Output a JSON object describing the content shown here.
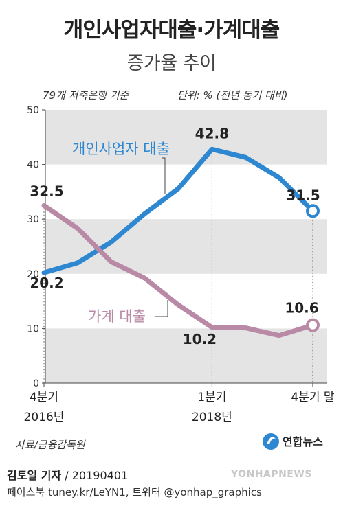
{
  "header": {
    "title": "개인사업자대출·가계대출",
    "subtitle": "증가율 추이",
    "basis_note": "79개 저축은행 기준",
    "unit_note": "단위: % (전년 동기 대비)"
  },
  "chart_data": {
    "type": "line",
    "ylim": [
      0,
      50
    ],
    "yticks": [
      0,
      10,
      20,
      30,
      40,
      50
    ],
    "grid": "alternating horizontal bands",
    "x": [
      "2016Q4",
      "2017Q1",
      "2017Q2",
      "2017Q3",
      "2017Q4",
      "2018Q1",
      "2018Q2",
      "2018Q3",
      "2018Q4"
    ],
    "xtick_labels": [
      {
        "index": 0,
        "line1": "4분기",
        "line2": "2016년"
      },
      {
        "index": 5,
        "line1": "1분기",
        "line2": "2018년"
      },
      {
        "index": 8,
        "line1": "4분기 말",
        "line2": ""
      }
    ],
    "series": [
      {
        "name": "개인사업자 대출",
        "color": "#2e88d1",
        "values": [
          20.2,
          22.0,
          25.8,
          31.0,
          35.6,
          42.8,
          41.3,
          37.6,
          31.5
        ],
        "labels": [
          {
            "index": 0,
            "text": "20.2"
          },
          {
            "index": 5,
            "text": "42.8"
          },
          {
            "index": 8,
            "text": "31.5"
          }
        ]
      },
      {
        "name": "가계 대출",
        "color": "#b98aa6",
        "values": [
          32.5,
          28.3,
          22.2,
          19.2,
          14.3,
          10.2,
          10.1,
          8.7,
          10.6
        ],
        "labels": [
          {
            "index": 0,
            "text": "32.5"
          },
          {
            "index": 5,
            "text": "10.2"
          },
          {
            "index": 8,
            "text": "10.6"
          }
        ]
      }
    ]
  },
  "footer": {
    "source": "자료/금융감독원",
    "logo_text": "연합뉴스",
    "author": "김토일 기자",
    "date_line": " / 20190401",
    "social": "페이스북 tuney.kr/LeYN1, 트위터 @yonhap_graphics",
    "watermark": "YONHAPNEWS"
  },
  "colors": {
    "band": "#e4e4e4",
    "axis": "#444444",
    "logo": "#2e88d1"
  }
}
